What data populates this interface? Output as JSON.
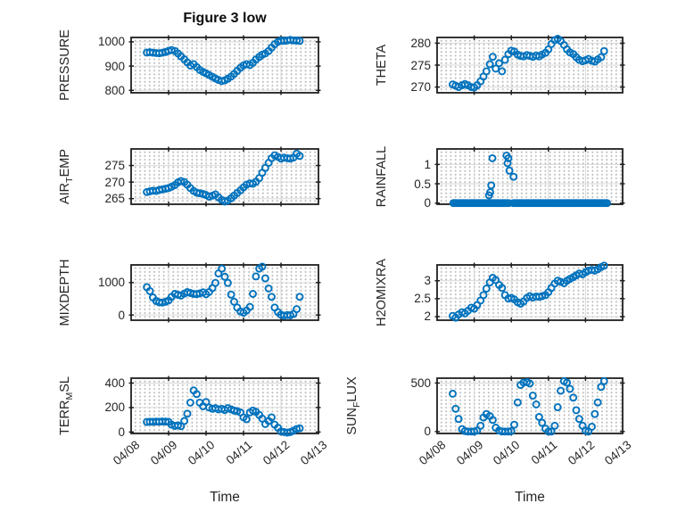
{
  "chart_data": {
    "type": "scatter",
    "title": "Figure 3 low",
    "xlabel": "Time",
    "marker_color": "#0072BD",
    "axis_color": "#1f1f1f",
    "grid_color": "#d9d9d9",
    "x_tick_labels": [
      "04/08",
      "04/09",
      "04/10",
      "04/11",
      "04/12",
      "04/13"
    ],
    "xlim_days": [
      0,
      5
    ],
    "t": [
      0.42,
      0.5,
      0.58,
      0.67,
      0.75,
      0.83,
      0.92,
      1.0,
      1.08,
      1.17,
      1.25,
      1.33,
      1.42,
      1.5,
      1.58,
      1.67,
      1.75,
      1.83,
      1.92,
      2.0,
      2.08,
      2.17,
      2.25,
      2.33,
      2.42,
      2.5,
      2.58,
      2.67,
      2.75,
      2.83,
      2.92,
      3.0,
      3.08,
      3.17,
      3.25,
      3.33,
      3.42,
      3.5,
      3.58,
      3.67,
      3.75,
      3.83,
      3.92,
      4.0,
      4.08,
      4.17,
      4.25,
      4.33,
      4.42,
      4.5
    ],
    "subplots": [
      {
        "name": "PRESSURE",
        "row": 0,
        "col": 0,
        "label_pre": "PRESSURE",
        "label_sub": "",
        "label_post": "",
        "yticks": [
          800,
          900,
          1000
        ],
        "ylim": [
          790,
          1018
        ],
        "values": [
          956,
          957,
          955,
          954,
          953,
          955,
          958,
          963,
          966,
          962,
          952,
          940,
          928,
          915,
          902,
          908,
          896,
          884,
          876,
          870,
          863,
          856,
          849,
          843,
          838,
          841,
          848,
          857,
          868,
          880,
          893,
          903,
          908,
          904,
          914,
          927,
          938,
          947,
          952,
          962,
          976,
          990,
          1000,
          1005,
          1004,
          1006,
          1008,
          1006,
          1005,
          1004
        ]
      },
      {
        "name": "THETA",
        "row": 0,
        "col": 1,
        "label_pre": "THETA",
        "label_sub": "",
        "label_post": "",
        "yticks": [
          270,
          275,
          280
        ],
        "ylim": [
          268.7,
          281.3
        ],
        "values": [
          270.6,
          270.3,
          270.0,
          270.4,
          270.7,
          270.4,
          270.0,
          269.9,
          270.4,
          271.3,
          272.4,
          273.6,
          275.2,
          276.9,
          274.2,
          275.4,
          273.6,
          276.2,
          277.5,
          278.3,
          278.1,
          277.4,
          277.1,
          277.0,
          277.3,
          277.1,
          276.9,
          277.2,
          277.0,
          277.4,
          277.8,
          278.6,
          279.8,
          280.7,
          281.0,
          280.5,
          279.6,
          278.6,
          277.9,
          277.5,
          276.8,
          276.2,
          275.9,
          276.1,
          276.4,
          276.0,
          275.8,
          276.3,
          276.8,
          278.2
        ]
      },
      {
        "name": "AIR_TEMP",
        "row": 1,
        "col": 0,
        "label_pre": "AIR",
        "label_sub": "T",
        "label_post": "EMP",
        "yticks": [
          265,
          270,
          275
        ],
        "ylim": [
          263.3,
          280.0
        ],
        "values": [
          267.0,
          267.2,
          267.4,
          267.3,
          267.6,
          267.8,
          268.0,
          268.2,
          268.6,
          269.1,
          269.9,
          270.3,
          270.0,
          269.2,
          268.2,
          267.3,
          266.8,
          266.6,
          266.4,
          266.1,
          265.6,
          265.9,
          266.3,
          265.4,
          264.6,
          264.1,
          264.4,
          265.1,
          265.9,
          266.7,
          267.5,
          268.4,
          269.2,
          269.6,
          269.5,
          270.1,
          271.2,
          272.8,
          274.3,
          275.8,
          277.2,
          278.1,
          277.6,
          277.1,
          277.4,
          277.2,
          277.1,
          277.4,
          278.6,
          277.9
        ]
      },
      {
        "name": "RAINFALL",
        "row": 1,
        "col": 1,
        "label_pre": "RAINFALL",
        "label_sub": "",
        "label_post": "",
        "yticks": [
          0,
          0.5,
          1
        ],
        "ylim": [
          -0.03,
          1.4
        ],
        "zero_runs": [
          [
            0.44,
            1.94
          ],
          [
            2.06,
            4.6
          ]
        ],
        "zero_step": 0.045,
        "extra_points": [
          [
            1.4,
            0.2
          ],
          [
            1.43,
            0.28
          ],
          [
            1.46,
            0.46
          ],
          [
            1.49,
            1.16
          ],
          [
            1.87,
            1.23
          ],
          [
            1.9,
            1.03
          ],
          [
            1.92,
            1.16
          ],
          [
            1.95,
            0.84
          ],
          [
            2.06,
            0.68
          ]
        ]
      },
      {
        "name": "MIXDEPTH",
        "row": 2,
        "col": 0,
        "label_pre": "MIXDEPTH",
        "label_sub": "",
        "label_post": "",
        "yticks": [
          0,
          1000
        ],
        "ylim": [
          -160,
          1545
        ],
        "values": [
          860,
          740,
          540,
          430,
          390,
          385,
          410,
          450,
          560,
          650,
          625,
          600,
          660,
          705,
          680,
          650,
          645,
          665,
          700,
          640,
          710,
          830,
          990,
          1280,
          1430,
          1180,
          990,
          630,
          410,
          230,
          110,
          70,
          140,
          250,
          650,
          1190,
          1430,
          1490,
          1130,
          820,
          560,
          230,
          90,
          10,
          -20,
          0,
          -10,
          30,
          180,
          560
        ]
      },
      {
        "name": "H2OMIXRA",
        "row": 2,
        "col": 1,
        "label_pre": "H2OMIXRA",
        "label_sub": "",
        "label_post": "",
        "yticks": [
          2,
          2.5,
          3
        ],
        "ylim": [
          1.9,
          3.44
        ],
        "values": [
          2.02,
          1.97,
          2.06,
          2.12,
          2.09,
          2.16,
          2.25,
          2.22,
          2.32,
          2.45,
          2.6,
          2.78,
          2.95,
          3.08,
          3.02,
          2.88,
          2.8,
          2.6,
          2.5,
          2.52,
          2.48,
          2.4,
          2.36,
          2.42,
          2.52,
          2.57,
          2.53,
          2.56,
          2.55,
          2.57,
          2.6,
          2.68,
          2.8,
          2.92,
          3.0,
          2.97,
          2.93,
          3.0,
          3.05,
          3.1,
          3.15,
          3.2,
          3.18,
          3.24,
          3.28,
          3.3,
          3.28,
          3.32,
          3.38,
          3.42
        ]
      },
      {
        "name": "TERR_MSL",
        "row": 3,
        "col": 0,
        "label_pre": "TERR",
        "label_sub": "M",
        "label_post": "SL",
        "yticks": [
          0,
          200,
          400
        ],
        "ylim": [
          -12,
          440
        ],
        "values": [
          82,
          84,
          83,
          85,
          84,
          86,
          85,
          83,
          60,
          50,
          55,
          48,
          90,
          150,
          240,
          340,
          310,
          240,
          210,
          245,
          200,
          190,
          195,
          185,
          190,
          180,
          195,
          185,
          175,
          170,
          160,
          120,
          105,
          160,
          175,
          165,
          140,
          110,
          65,
          90,
          120,
          60,
          35,
          5,
          0,
          -5,
          0,
          10,
          25,
          30
        ]
      },
      {
        "name": "SUN_FLUX",
        "row": 3,
        "col": 1,
        "label_pre": "SUN",
        "label_sub": "F",
        "label_post": "LUX",
        "yticks": [
          0,
          500
        ],
        "ylim": [
          -20,
          550
        ],
        "values": [
          390,
          235,
          130,
          25,
          5,
          0,
          0,
          0,
          10,
          60,
          145,
          180,
          160,
          120,
          40,
          10,
          0,
          0,
          0,
          5,
          70,
          300,
          480,
          505,
          510,
          495,
          370,
          280,
          150,
          90,
          30,
          0,
          0,
          60,
          250,
          420,
          520,
          505,
          440,
          350,
          220,
          130,
          60,
          10,
          0,
          50,
          180,
          300,
          460,
          520
        ]
      }
    ]
  }
}
